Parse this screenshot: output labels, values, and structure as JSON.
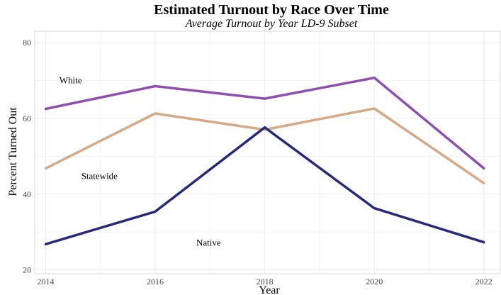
{
  "chart_data": {
    "type": "line",
    "title": "Estimated Turnout by Race Over Time",
    "subtitle": "Average Turnout by Year LD-9 Subset",
    "xlabel": "Year",
    "ylabel": "Percent Turned Out",
    "x": [
      2014,
      2016,
      2018,
      2020,
      2022
    ],
    "xticks": [
      "2014",
      "2016",
      "2018",
      "2020",
      "2022"
    ],
    "yticks": [
      "20",
      "40",
      "60",
      "80"
    ],
    "xlim": [
      2013.8,
      2022.3
    ],
    "ylim": [
      19,
      83
    ],
    "grid": true,
    "legend": "none",
    "series": [
      {
        "name": "White",
        "color": "#8e4fae",
        "values": [
          62.5,
          68.5,
          65.2,
          70.7,
          46.8
        ]
      },
      {
        "name": "Statewide",
        "color": "#d4ab86",
        "values": [
          46.8,
          61.3,
          57.0,
          62.6,
          42.9
        ]
      },
      {
        "name": "Native",
        "color": "#262a78",
        "values": [
          26.8,
          35.4,
          57.6,
          36.3,
          27.3
        ]
      }
    ]
  }
}
